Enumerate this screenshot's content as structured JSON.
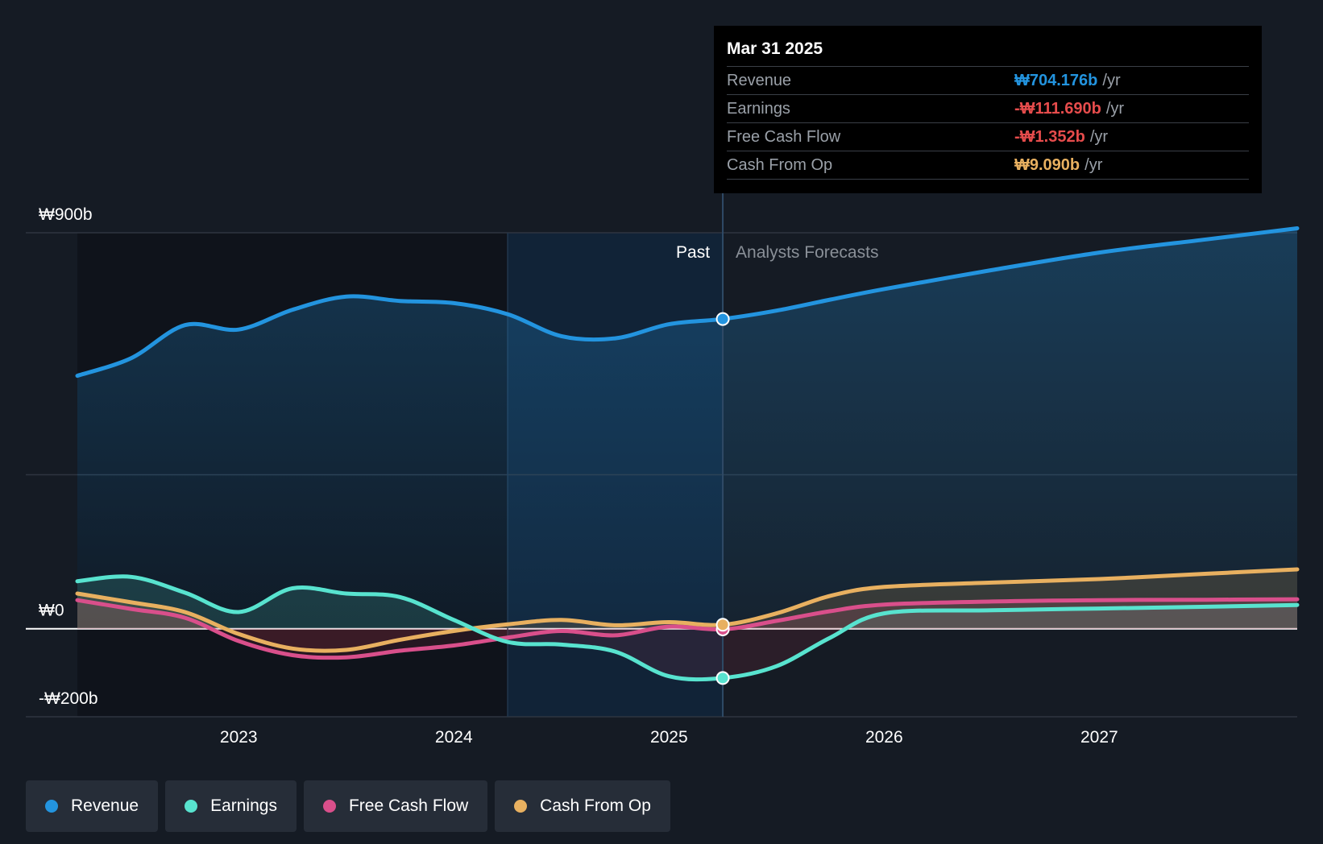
{
  "colors": {
    "revenue": "#2394df",
    "earnings": "#58e3cf",
    "fcf": "#d94f8b",
    "cfo": "#e8b060",
    "negative_text": "#e64c4c"
  },
  "tooltip": {
    "date": "Mar 31 2025",
    "rows": [
      {
        "label": "Revenue",
        "value": "₩704.176b",
        "unit": "/yr"
      },
      {
        "label": "Earnings",
        "value": "-₩111.690b",
        "unit": "/yr"
      },
      {
        "label": "Free Cash Flow",
        "value": "-₩1.352b",
        "unit": "/yr"
      },
      {
        "label": "Cash From Op",
        "value": "₩9.090b",
        "unit": "/yr"
      }
    ]
  },
  "legend": [
    {
      "label": "Revenue"
    },
    {
      "label": "Earnings"
    },
    {
      "label": "Free Cash Flow"
    },
    {
      "label": "Cash From Op"
    }
  ],
  "chart_data": {
    "type": "line",
    "y_tick_labels": [
      "₩900b",
      "₩0",
      "-₩200b"
    ],
    "ylim": [
      -200,
      900
    ],
    "xlim": [
      2022.25,
      2027.92
    ],
    "x_tick_labels": [
      "2023",
      "2024",
      "2025",
      "2026",
      "2027"
    ],
    "x_ticks": [
      2023,
      2024,
      2025,
      2026,
      2027
    ],
    "past_label": "Past",
    "forecast_label": "Analysts Forecasts",
    "forecast_start": 2025.25,
    "grid": true,
    "legend_position": "bottom-left",
    "series": [
      {
        "name": "Revenue",
        "key": "revenue",
        "points": [
          [
            2022.25,
            575
          ],
          [
            2022.5,
            615
          ],
          [
            2022.75,
            690
          ],
          [
            2023.0,
            680
          ],
          [
            2023.25,
            725
          ],
          [
            2023.5,
            755
          ],
          [
            2023.75,
            745
          ],
          [
            2024.0,
            740
          ],
          [
            2024.25,
            715
          ],
          [
            2024.5,
            665
          ],
          [
            2024.75,
            660
          ],
          [
            2025.0,
            692
          ],
          [
            2025.25,
            704
          ],
          [
            2025.5,
            723
          ],
          [
            2025.75,
            748
          ],
          [
            2026.0,
            772
          ],
          [
            2026.5,
            815
          ],
          [
            2027.0,
            855
          ],
          [
            2027.5,
            885
          ],
          [
            2027.92,
            910
          ]
        ]
      },
      {
        "name": "Earnings",
        "key": "earnings",
        "points": [
          [
            2022.25,
            108
          ],
          [
            2022.5,
            118
          ],
          [
            2022.75,
            82
          ],
          [
            2023.0,
            38
          ],
          [
            2023.25,
            92
          ],
          [
            2023.5,
            80
          ],
          [
            2023.75,
            72
          ],
          [
            2024.0,
            20
          ],
          [
            2024.25,
            -30
          ],
          [
            2024.5,
            -36
          ],
          [
            2024.75,
            -52
          ],
          [
            2025.0,
            -108
          ],
          [
            2025.25,
            -112
          ],
          [
            2025.5,
            -85
          ],
          [
            2025.75,
            -20
          ],
          [
            2026.0,
            35
          ],
          [
            2026.5,
            42
          ],
          [
            2027.0,
            46
          ],
          [
            2027.5,
            50
          ],
          [
            2027.92,
            54
          ]
        ]
      },
      {
        "name": "Free Cash Flow",
        "key": "fcf",
        "points": [
          [
            2022.25,
            65
          ],
          [
            2022.5,
            45
          ],
          [
            2022.75,
            25
          ],
          [
            2023.0,
            -28
          ],
          [
            2023.25,
            -60
          ],
          [
            2023.5,
            -65
          ],
          [
            2023.75,
            -50
          ],
          [
            2024.0,
            -38
          ],
          [
            2024.25,
            -20
          ],
          [
            2024.5,
            -5
          ],
          [
            2024.75,
            -15
          ],
          [
            2025.0,
            5
          ],
          [
            2025.25,
            -1.352
          ],
          [
            2025.5,
            18
          ],
          [
            2025.75,
            40
          ],
          [
            2026.0,
            55
          ],
          [
            2026.5,
            62
          ],
          [
            2027.0,
            65
          ],
          [
            2027.5,
            66
          ],
          [
            2027.92,
            67
          ]
        ]
      },
      {
        "name": "Cash From Op",
        "key": "cfo",
        "points": [
          [
            2022.25,
            80
          ],
          [
            2022.5,
            60
          ],
          [
            2022.75,
            38
          ],
          [
            2023.0,
            -12
          ],
          [
            2023.25,
            -45
          ],
          [
            2023.5,
            -48
          ],
          [
            2023.75,
            -25
          ],
          [
            2024.0,
            -5
          ],
          [
            2024.25,
            10
          ],
          [
            2024.5,
            20
          ],
          [
            2024.75,
            8
          ],
          [
            2025.0,
            15
          ],
          [
            2025.25,
            9.09
          ],
          [
            2025.5,
            35
          ],
          [
            2025.75,
            75
          ],
          [
            2026.0,
            95
          ],
          [
            2026.5,
            105
          ],
          [
            2027.0,
            113
          ],
          [
            2027.5,
            125
          ],
          [
            2027.92,
            135
          ]
        ]
      }
    ]
  }
}
